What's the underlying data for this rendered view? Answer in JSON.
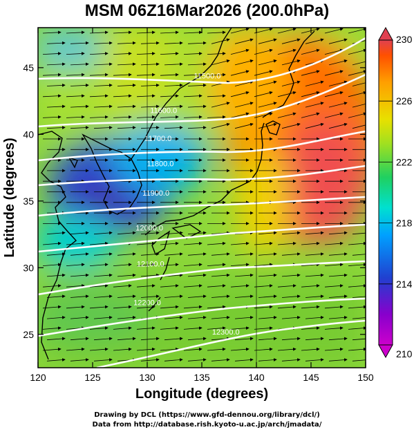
{
  "title": "MSM 06Z16Mar2026 (200.0hPa)",
  "map": {
    "xlabel": "Longitude (degrees)",
    "ylabel": "Latitude  (degrees)",
    "lon_range": [
      120,
      150
    ],
    "lat_range": [
      22.5,
      48
    ],
    "lon_ticks": [
      "120",
      "125",
      "130",
      "135",
      "140",
      "145",
      "150"
    ],
    "lat_ticks": [
      "25",
      "30",
      "35",
      "40",
      "45"
    ],
    "field": "temperature shading with wind vectors and geopotential height contours",
    "contour_labels": [
      {
        "text": "11500.0",
        "lon": 135.5,
        "lat": 44.2
      },
      {
        "text": "11600.0",
        "lon": 131.5,
        "lat": 41.6
      },
      {
        "text": "11700.0",
        "lon": 131.0,
        "lat": 39.5
      },
      {
        "text": "11800.0",
        "lon": 131.2,
        "lat": 37.6
      },
      {
        "text": "11900.0",
        "lon": 130.8,
        "lat": 35.4
      },
      {
        "text": "12000.0",
        "lon": 130.2,
        "lat": 32.8
      },
      {
        "text": "12100.0",
        "lon": 130.3,
        "lat": 30.1
      },
      {
        "text": "12200.0",
        "lon": 130.0,
        "lat": 27.2
      },
      {
        "text": "12300.0",
        "lon": 137.2,
        "lat": 25.0
      }
    ]
  },
  "colorbar": {
    "min": 210,
    "max": 230,
    "tick_labels": [
      "230",
      "226",
      "222",
      "218",
      "214",
      "210"
    ],
    "colors": [
      "#cc00cc",
      "#3030d0",
      "#00a0ff",
      "#00e0e0",
      "#30d060",
      "#a0e020",
      "#e8e000",
      "#ffb000",
      "#ff6000",
      "#e04040"
    ]
  },
  "credits": {
    "line1": "Drawing by DCL (https://www.gfd-dennou.org/library/dcl/)",
    "line2": "Data from http://database.rish.kyoto-u.ac.jp/arch/jmadata/"
  }
}
